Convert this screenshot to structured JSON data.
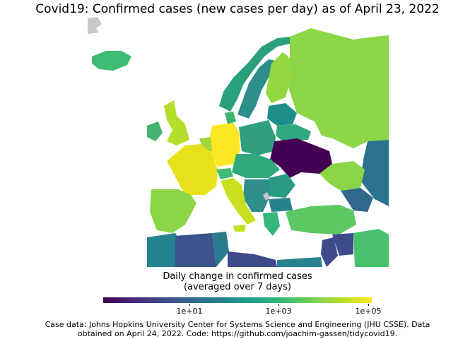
{
  "title": "Covid19: Confirmed cases (new cases per day) as of April 23, 2022",
  "legend": {
    "title_line1": "Daily change in confirmed cases",
    "title_line2": "(averaged over 7 days)",
    "ticks": [
      "1e+01",
      "1e+03",
      "1e+05"
    ],
    "colors": [
      "#440154",
      "#3e4a89",
      "#26828e",
      "#35b779",
      "#b5de2b",
      "#fde725"
    ]
  },
  "caption": {
    "line1": "Case data: Johns Hopkins University Center for Systems Science and Engineering (JHU CSSE). Data",
    "line2": "obtained on April 24, 2022. Code: https://github.com/joachim-gassen/tidycovid19."
  }
}
